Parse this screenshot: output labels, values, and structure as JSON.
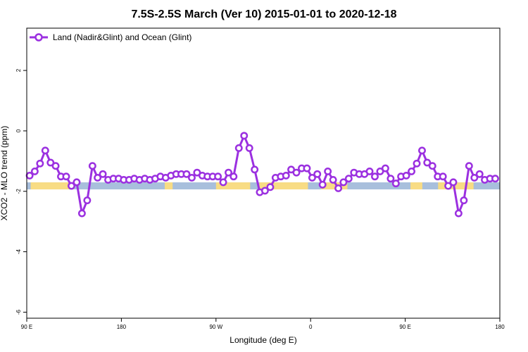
{
  "chart_data": {
    "type": "line",
    "title": "7.5S-2.5S March (Ver 10)   2015-01-01 to 2020-12-18",
    "xlabel": "Longitude (deg E)",
    "ylabel": "XCO2 - MLO trend (ppm)",
    "xlim": [
      90,
      450
    ],
    "ylim": [
      -6.2,
      3.4
    ],
    "x_ticks": [
      {
        "value": 90,
        "label": "90 E"
      },
      {
        "value": 162,
        "label": "180"
      },
      {
        "value": 234,
        "label": "90 W"
      },
      {
        "value": 306,
        "label": "0"
      },
      {
        "value": 378,
        "label": "90 E"
      },
      {
        "value": 450,
        "label": "180"
      }
    ],
    "y_ticks": [
      {
        "value": 2,
        "label": "2"
      },
      {
        "value": 0,
        "label": "0"
      },
      {
        "value": -2,
        "label": "-2"
      },
      {
        "value": -4,
        "label": "-4"
      },
      {
        "value": -6,
        "label": "-6"
      }
    ],
    "grid": false,
    "legend_position": "top-left",
    "series": [
      {
        "name": "Land (Nadir&Glint) and Ocean (Glint)",
        "color": "#9b30e0",
        "marker": "open-circle",
        "x": [
          92.2,
          96.1,
          100.1,
          104.1,
          108.1,
          112.0,
          116.0,
          120.0,
          124.0,
          128.0,
          132.0,
          136.0,
          140.0,
          143.9,
          147.9,
          151.9,
          155.9,
          159.9,
          163.8,
          167.9,
          171.8,
          175.8,
          179.8,
          183.7,
          187.7,
          191.7,
          195.7,
          199.7,
          203.7,
          207.6,
          211.6,
          215.6,
          219.6,
          223.6,
          227.5,
          231.5,
          235.5,
          239.5,
          243.5,
          247.4,
          251.4,
          255.4,
          259.4,
          263.4,
          267.3,
          271.3,
          275.3,
          279.3,
          283.3,
          287.3,
          291.2,
          295.2,
          299.2,
          303.2,
          307.2,
          311.1,
          315.1,
          319.1,
          323.1,
          327.1,
          331.0,
          335.0,
          339.0,
          343.0,
          347.0,
          350.9,
          354.9,
          358.9,
          362.9,
          366.9,
          370.9,
          374.8,
          378.8,
          382.8,
          386.8,
          390.8,
          394.7,
          398.7,
          402.7,
          406.7,
          410.7,
          414.6,
          418.6,
          422.6,
          426.6,
          430.6,
          434.6,
          438.5,
          442.5,
          446.5
        ],
        "values": [
          -1.48,
          -1.34,
          -1.08,
          -0.65,
          -1.05,
          -1.16,
          -1.51,
          -1.51,
          -1.82,
          -1.7,
          -2.73,
          -2.3,
          -1.16,
          -1.55,
          -1.43,
          -1.62,
          -1.58,
          -1.58,
          -1.62,
          -1.62,
          -1.58,
          -1.62,
          -1.58,
          -1.62,
          -1.58,
          -1.51,
          -1.55,
          -1.48,
          -1.43,
          -1.43,
          -1.43,
          -1.55,
          -1.38,
          -1.48,
          -1.51,
          -1.51,
          -1.51,
          -1.7,
          -1.38,
          -1.51,
          -0.57,
          -0.16,
          -0.57,
          -1.28,
          -2.03,
          -1.98,
          -1.86,
          -1.55,
          -1.51,
          -1.48,
          -1.28,
          -1.38,
          -1.24,
          -1.24,
          -1.55,
          -1.43,
          -1.78,
          -1.34,
          -1.62,
          -1.9,
          -1.7,
          -1.58,
          -1.38,
          -1.43,
          -1.43,
          -1.34,
          -1.51,
          -1.34,
          -1.24,
          -1.58,
          -1.74,
          -1.51,
          -1.48,
          -1.34,
          -1.08,
          -0.65,
          -1.05,
          -1.16,
          -1.51,
          -1.51,
          -1.82,
          -1.7,
          -2.73,
          -2.3,
          -1.16,
          -1.55,
          -1.43,
          -1.62,
          -1.58,
          -1.58
        ]
      }
    ],
    "land_ocean_band": {
      "y_value": -1.82,
      "ocean_color": "#a8bfdc",
      "land_color": "#f8dc84"
    }
  }
}
